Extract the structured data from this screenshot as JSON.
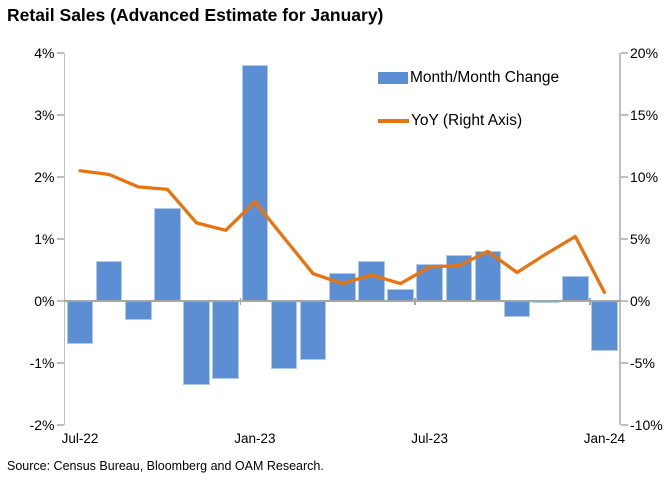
{
  "title": "Retail Sales (Advanced Estimate for January)",
  "source": "Source: Census Bureau, Bloomberg and OAM Research.",
  "colors": {
    "bar": "#5b8ed2",
    "bar_border": "#aecbec",
    "line": "#e9740f",
    "axis": "#bfbfbf",
    "zero_line": "#a6a6a6",
    "text": "#000000"
  },
  "chart_data": {
    "type": "bar",
    "title": "Retail Sales (Advanced Estimate for January)",
    "categories": [
      "Jul-22",
      "Aug-22",
      "Sep-22",
      "Oct-22",
      "Nov-22",
      "Dec-22",
      "Jan-23",
      "Feb-23",
      "Mar-23",
      "Apr-23",
      "May-23",
      "Jun-23",
      "Jul-23",
      "Aug-23",
      "Sep-23",
      "Oct-23",
      "Nov-23",
      "Dec-23",
      "Jan-24"
    ],
    "series": [
      {
        "name": "Month/Month Change",
        "type": "bar",
        "axis": "left",
        "values": [
          -0.7,
          0.65,
          -0.3,
          1.5,
          -1.35,
          -1.25,
          3.8,
          -1.1,
          -0.95,
          0.45,
          0.65,
          0.2,
          0.6,
          0.75,
          0.8,
          -0.25,
          0.0,
          0.4,
          -0.8
        ]
      },
      {
        "name": "YoY (Right Axis)",
        "type": "line",
        "axis": "right",
        "values": [
          10.5,
          10.2,
          9.2,
          9.0,
          6.3,
          5.7,
          8.0,
          5.1,
          2.2,
          1.4,
          2.1,
          1.4,
          2.75,
          2.85,
          4.0,
          2.3,
          3.8,
          5.2,
          0.7
        ]
      }
    ],
    "left_axis": {
      "min": -2,
      "max": 4,
      "tick_labels": [
        "4%",
        "3%",
        "2%",
        "1%",
        "0%",
        "-1%",
        "-2%"
      ],
      "tick_values": [
        4,
        3,
        2,
        1,
        0,
        -1,
        -2
      ]
    },
    "right_axis": {
      "min": -10,
      "max": 20,
      "tick_labels": [
        "20%",
        "15%",
        "10%",
        "5%",
        "0%",
        "-5%",
        "-10%"
      ],
      "tick_values": [
        20,
        15,
        10,
        5,
        0,
        -5,
        -10
      ]
    },
    "x_axis": {
      "labels": [
        "Jul-22",
        "Jan-23",
        "Jul-23",
        "Jan-24"
      ],
      "label_month_index": [
        0,
        6,
        12,
        18
      ]
    },
    "grid": false,
    "legend_position": "top-right-inside"
  }
}
